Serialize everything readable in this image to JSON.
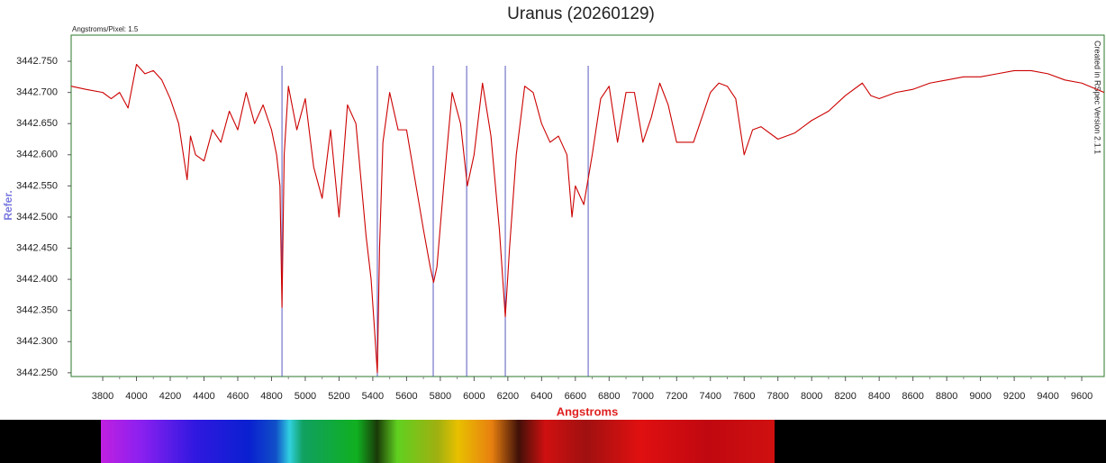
{
  "chart_data": {
    "type": "line",
    "title": "Uranus (20260129)",
    "subtitle": "Angstroms/Pixel: 1.5",
    "x_label": "Angstroms",
    "y_label": "Refer.",
    "annotation": "Created in RSpec Version 2.1.1",
    "xlim": [
      3613,
      9733
    ],
    "ylim": [
      3442.244,
      3442.792
    ],
    "xticks": [
      3800,
      4000,
      4200,
      4400,
      4600,
      4800,
      5000,
      5200,
      5400,
      5600,
      5800,
      6000,
      6200,
      6400,
      6600,
      6800,
      7000,
      7200,
      7400,
      7600,
      7800,
      8000,
      8200,
      8400,
      8600,
      8800,
      9000,
      9200,
      9400,
      9600
    ],
    "yticks": [
      {
        "value": 3442.25,
        "label": "3442.250"
      },
      {
        "value": 3442.3,
        "label": "3442.300"
      },
      {
        "value": 3442.35,
        "label": "3442.350"
      },
      {
        "value": 3442.4,
        "label": "3442.400"
      },
      {
        "value": 3442.45,
        "label": "3442.450"
      },
      {
        "value": 3442.5,
        "label": "3442.500"
      },
      {
        "value": 3442.55,
        "label": "3442.550"
      },
      {
        "value": 3442.6,
        "label": "3442.600"
      },
      {
        "value": 3442.65,
        "label": "3442.650"
      },
      {
        "value": 3442.7,
        "label": "3442.700"
      },
      {
        "value": 3442.75,
        "label": "3442.750"
      }
    ],
    "reference_lines": [
      4862,
      5427,
      5758,
      5956,
      6185,
      6676
    ],
    "reference_color": "#5a5ac0",
    "x": [
      3613,
      3700,
      3800,
      3850,
      3900,
      3950,
      4000,
      4050,
      4100,
      4150,
      4200,
      4250,
      4300,
      4320,
      4350,
      4400,
      4450,
      4500,
      4550,
      4600,
      4650,
      4700,
      4750,
      4800,
      4830,
      4850,
      4862,
      4875,
      4900,
      4950,
      5000,
      5050,
      5100,
      5150,
      5200,
      5250,
      5300,
      5330,
      5360,
      5390,
      5410,
      5427,
      5440,
      5460,
      5500,
      5550,
      5600,
      5650,
      5700,
      5740,
      5760,
      5780,
      5820,
      5870,
      5920,
      5960,
      6000,
      6050,
      6100,
      6150,
      6185,
      6210,
      6250,
      6300,
      6350,
      6400,
      6450,
      6500,
      6550,
      6580,
      6600,
      6650,
      6700,
      6750,
      6800,
      6850,
      6900,
      6950,
      7000,
      7050,
      7100,
      7150,
      7200,
      7300,
      7400,
      7450,
      7500,
      7550,
      7600,
      7650,
      7700,
      7800,
      7900,
      8000,
      8100,
      8200,
      8300,
      8350,
      8400,
      8500,
      8600,
      8700,
      8800,
      8900,
      9000,
      9100,
      9200,
      9300,
      9400,
      9500,
      9600,
      9733
    ],
    "series": [
      {
        "color": "#cc0000",
        "values": [
          3442.71,
          3442.705,
          3442.7,
          3442.69,
          3442.7,
          3442.675,
          3442.745,
          3442.73,
          3442.735,
          3442.72,
          3442.69,
          3442.65,
          3442.56,
          3442.63,
          3442.6,
          3442.59,
          3442.64,
          3442.62,
          3442.67,
          3442.64,
          3442.7,
          3442.65,
          3442.68,
          3442.64,
          3442.6,
          3442.55,
          3442.355,
          3442.6,
          3442.71,
          3442.64,
          3442.69,
          3442.58,
          3442.53,
          3442.64,
          3442.5,
          3442.68,
          3442.65,
          3442.56,
          3442.47,
          3442.4,
          3442.32,
          3442.25,
          3442.45,
          3442.62,
          3442.7,
          3442.64,
          3442.64,
          3442.56,
          3442.48,
          3442.42,
          3442.395,
          3442.42,
          3442.55,
          3442.7,
          3442.65,
          3442.55,
          3442.6,
          3442.715,
          3442.63,
          3442.48,
          3442.34,
          3442.45,
          3442.6,
          3442.71,
          3442.7,
          3442.65,
          3442.62,
          3442.63,
          3442.6,
          3442.5,
          3442.55,
          3442.52,
          3442.6,
          3442.69,
          3442.71,
          3442.62,
          3442.7,
          3442.7,
          3442.62,
          3442.66,
          3442.715,
          3442.68,
          3442.62,
          3442.62,
          3442.7,
          3442.715,
          3442.71,
          3442.69,
          3442.6,
          3442.64,
          3442.645,
          3442.625,
          3442.635,
          3442.655,
          3442.67,
          3442.695,
          3442.715,
          3442.695,
          3442.69,
          3442.7,
          3442.705,
          3442.715,
          3442.72,
          3442.725,
          3442.725,
          3442.73,
          3442.735,
          3442.735,
          3442.73,
          3442.72,
          3442.715,
          3442.7
        ]
      }
    ]
  }
}
